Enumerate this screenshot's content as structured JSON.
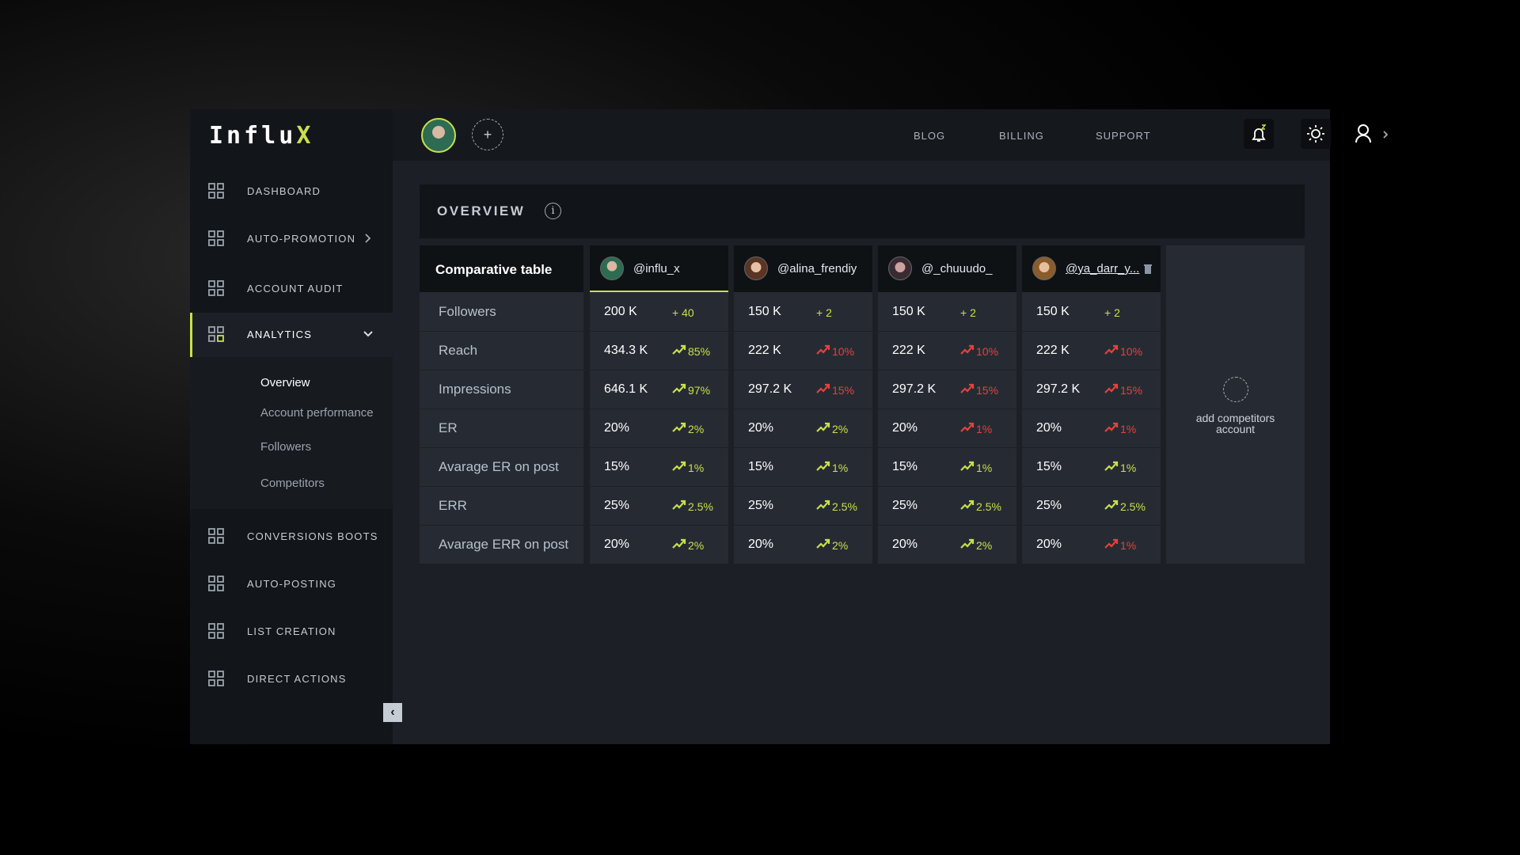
{
  "brand": {
    "text": "Influ",
    "accent": "X"
  },
  "sidebar": {
    "items": [
      {
        "label": "DASHBOARD"
      },
      {
        "label": "AUTO-PROMOTION",
        "chevron": "right"
      },
      {
        "label": "ACCOUNT AUDIT"
      },
      {
        "label": "ANALYTICS",
        "chevron": "down",
        "active": true
      },
      {
        "label": "CONVERSIONS BOOTS"
      },
      {
        "label": "AUTO-POSTING"
      },
      {
        "label": "LIST CREATION"
      },
      {
        "label": "DIRECT ACTIONS"
      }
    ],
    "submenu": [
      "Overview",
      "Account performance",
      "Followers",
      "Competitors"
    ]
  },
  "topbar": {
    "links": [
      "BLOG",
      "BILLING",
      "SUPPORT"
    ]
  },
  "overview": {
    "title": "OVERVIEW"
  },
  "table": {
    "title": "Comparative table",
    "rows": [
      "Followers",
      "Reach",
      "Impressions",
      "ER",
      "Avarage ER on post",
      "ERR",
      "Avarage ERR on post"
    ],
    "accounts": [
      {
        "handle": "@influ_x",
        "cells": [
          {
            "value": "200 K",
            "change": "+ 40",
            "color": "#c9e04a",
            "arrow": false
          },
          {
            "value": "434.3 K",
            "change": "85%",
            "color": "#c9e04a",
            "arrow": true
          },
          {
            "value": "646.1 K",
            "change": "97%",
            "color": "#c9e04a",
            "arrow": true
          },
          {
            "value": "20%",
            "change": "2%",
            "color": "#c9e04a",
            "arrow": true
          },
          {
            "value": "15%",
            "change": "1%",
            "color": "#c9e04a",
            "arrow": true
          },
          {
            "value": "25%",
            "change": "2.5%",
            "color": "#c9e04a",
            "arrow": true
          },
          {
            "value": "20%",
            "change": "2%",
            "color": "#c9e04a",
            "arrow": true
          }
        ]
      },
      {
        "handle": "@alina_frendiy",
        "cells": [
          {
            "value": "150 K",
            "change": "+ 2",
            "color": "#c9e04a",
            "arrow": false
          },
          {
            "value": "222 K",
            "change": "10%",
            "color": "#e8403a",
            "arrow": true
          },
          {
            "value": "297.2 K",
            "change": "15%",
            "color": "#e8403a",
            "arrow": true
          },
          {
            "value": "20%",
            "change": "2%",
            "color": "#c9e04a",
            "arrow": true
          },
          {
            "value": "15%",
            "change": "1%",
            "color": "#c9e04a",
            "arrow": true
          },
          {
            "value": "25%",
            "change": "2.5%",
            "color": "#c9e04a",
            "arrow": true
          },
          {
            "value": "20%",
            "change": "2%",
            "color": "#c9e04a",
            "arrow": true
          }
        ]
      },
      {
        "handle": "@_chuuudo_",
        "cells": [
          {
            "value": "150 K",
            "change": "+ 2",
            "color": "#c9e04a",
            "arrow": false
          },
          {
            "value": "222 K",
            "change": "10%",
            "color": "#e8403a",
            "arrow": true
          },
          {
            "value": "297.2 K",
            "change": "15%",
            "color": "#e8403a",
            "arrow": true
          },
          {
            "value": "20%",
            "change": "1%",
            "color": "#e8403a",
            "arrow": true
          },
          {
            "value": "15%",
            "change": "1%",
            "color": "#c9e04a",
            "arrow": true
          },
          {
            "value": "25%",
            "change": "2.5%",
            "color": "#c9e04a",
            "arrow": true
          },
          {
            "value": "20%",
            "change": "2%",
            "color": "#c9e04a",
            "arrow": true
          }
        ]
      },
      {
        "handle": "@ya_darr_y...",
        "cells": [
          {
            "value": "150 K",
            "change": "+ 2",
            "color": "#c9e04a",
            "arrow": false
          },
          {
            "value": "222 K",
            "change": "10%",
            "color": "#e8403a",
            "arrow": true
          },
          {
            "value": "297.2 K",
            "change": "15%",
            "color": "#e8403a",
            "arrow": true
          },
          {
            "value": "20%",
            "change": "1%",
            "color": "#e8403a",
            "arrow": true
          },
          {
            "value": "15%",
            "change": "1%",
            "color": "#c9e04a",
            "arrow": true
          },
          {
            "value": "25%",
            "change": "2.5%",
            "color": "#c9e04a",
            "arrow": true
          },
          {
            "value": "20%",
            "change": "1%",
            "color": "#e8403a",
            "arrow": true
          }
        ]
      }
    ],
    "add_label": "add competitors account"
  }
}
